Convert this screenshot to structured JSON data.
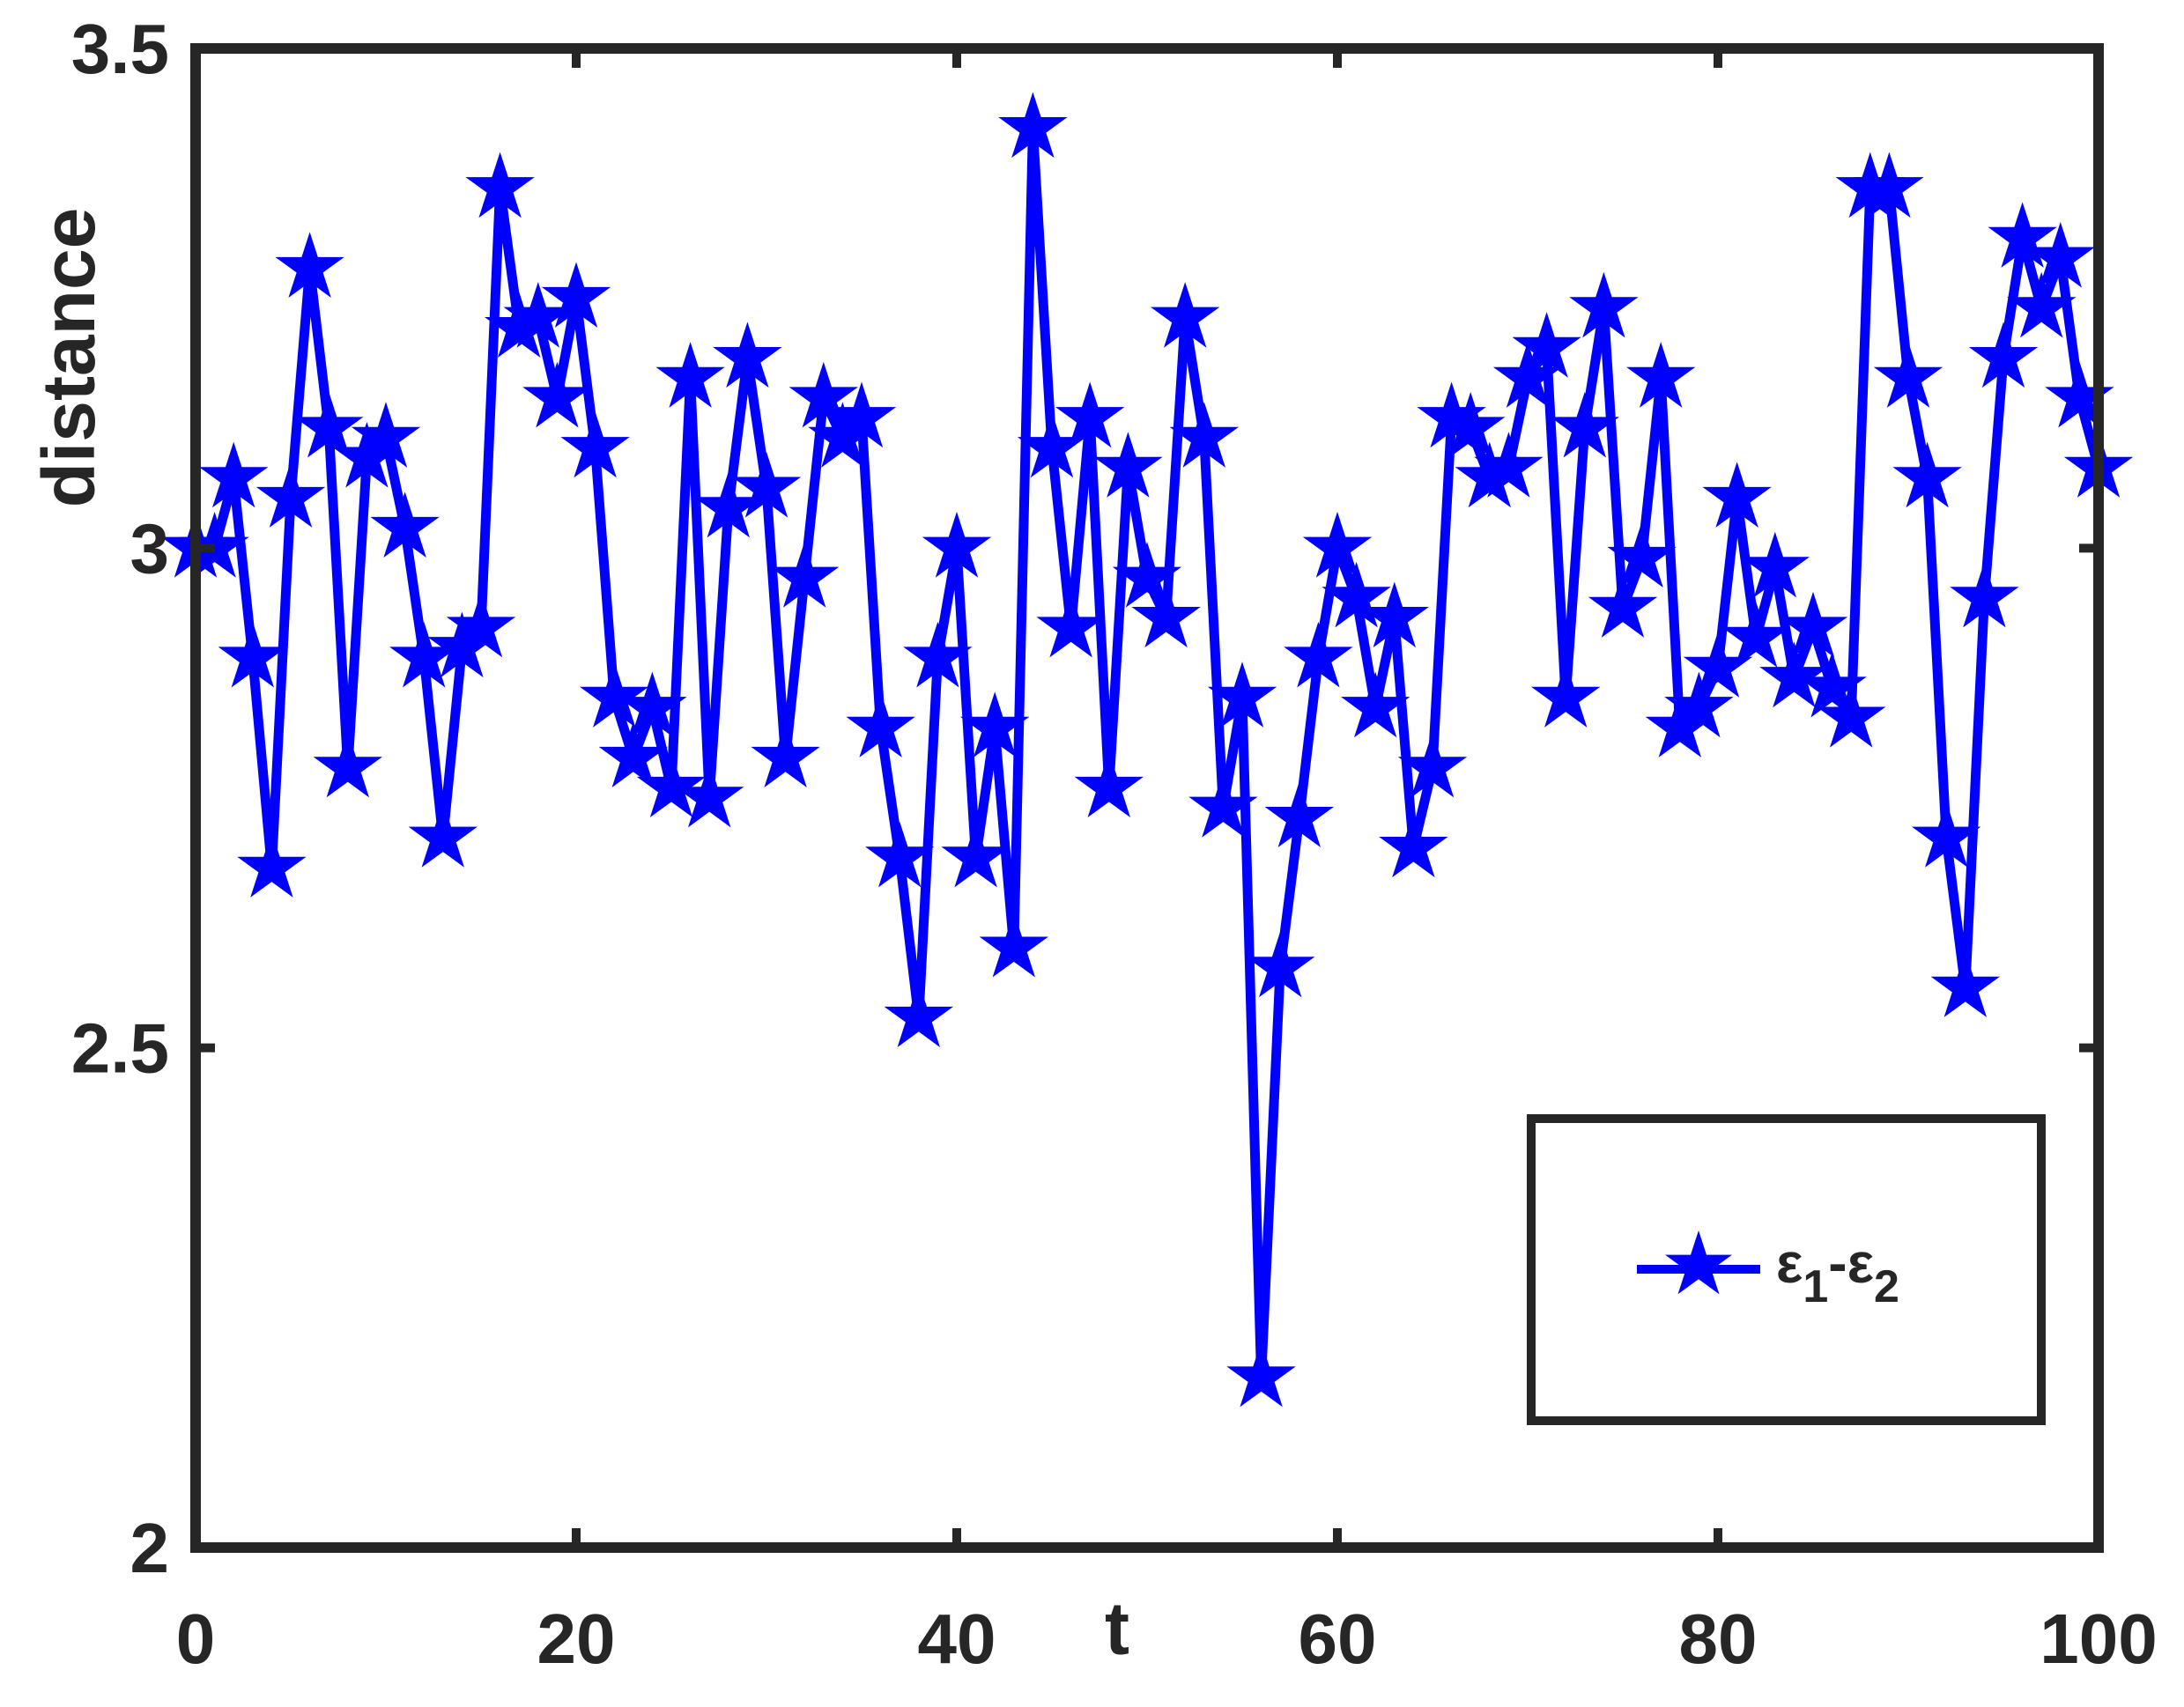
{
  "chart_data": {
    "type": "line",
    "title": "",
    "xlabel": "t",
    "ylabel": "distance",
    "xlim": [
      0,
      100
    ],
    "ylim": [
      2,
      3.5
    ],
    "xticks": [
      0,
      20,
      40,
      60,
      80,
      100
    ],
    "xtick_labels": [
      "0",
      "20",
      "40",
      "60",
      "80",
      "100"
    ],
    "yticks": [
      2,
      2.5,
      3,
      3.5
    ],
    "ytick_labels": [
      "2",
      "2.5",
      "3",
      "3.5"
    ],
    "grid": false,
    "legend_position": "bottom-right",
    "marker": "pentagram",
    "color": "#0000ff",
    "series": [
      {
        "name": "ε1-ε2",
        "x": [
          0,
          1,
          2,
          3,
          4,
          5,
          6,
          7,
          8,
          9,
          10,
          11,
          12,
          13,
          14,
          15,
          16,
          17,
          18,
          19,
          20,
          21,
          22,
          23,
          24,
          25,
          26,
          27,
          28,
          29,
          30,
          31,
          32,
          33,
          34,
          35,
          36,
          37,
          38,
          39,
          40,
          41,
          42,
          43,
          44,
          45,
          46,
          47,
          48,
          49,
          50,
          51,
          52,
          53,
          54,
          55,
          56,
          57,
          58,
          59,
          60,
          61,
          62,
          63,
          64,
          65,
          66,
          67,
          68,
          69,
          70,
          71,
          72,
          73,
          74,
          75,
          76,
          77,
          78,
          79,
          80,
          81,
          82,
          83,
          84,
          85,
          86,
          87,
          88,
          89,
          90,
          91,
          92,
          93,
          94,
          95,
          96,
          97,
          98,
          99,
          100
        ],
        "values": [
          3.0,
          3.0,
          3.07,
          2.89,
          2.68,
          3.05,
          3.28,
          3.12,
          2.78,
          3.09,
          3.11,
          3.02,
          2.89,
          2.71,
          2.9,
          2.92,
          3.36,
          3.22,
          3.23,
          3.15,
          3.25,
          3.1,
          2.85,
          2.79,
          2.84,
          2.76,
          3.17,
          2.75,
          3.04,
          3.19,
          3.06,
          2.79,
          2.97,
          3.15,
          3.11,
          3.13,
          2.82,
          2.69,
          2.53,
          2.89,
          3.0,
          2.69,
          2.82,
          2.6,
          3.42,
          3.1,
          2.92,
          3.13,
          2.76,
          3.08,
          2.97,
          2.93,
          3.23,
          3.11,
          2.74,
          2.85,
          2.17,
          2.58,
          2.73,
          2.89,
          3.0,
          2.95,
          2.84,
          2.93,
          2.7,
          2.78,
          3.13,
          3.12,
          3.07,
          3.08,
          3.17,
          3.2,
          2.85,
          3.12,
          3.24,
          2.94,
          2.99,
          3.17,
          2.82,
          2.84,
          2.88,
          3.05,
          2.91,
          2.98,
          2.87,
          2.92,
          2.86,
          2.83,
          3.36,
          3.36,
          3.17,
          3.07,
          2.71,
          2.56,
          2.95,
          3.19,
          3.31,
          3.24,
          3.29,
          3.15,
          3.08
        ]
      }
    ]
  }
}
